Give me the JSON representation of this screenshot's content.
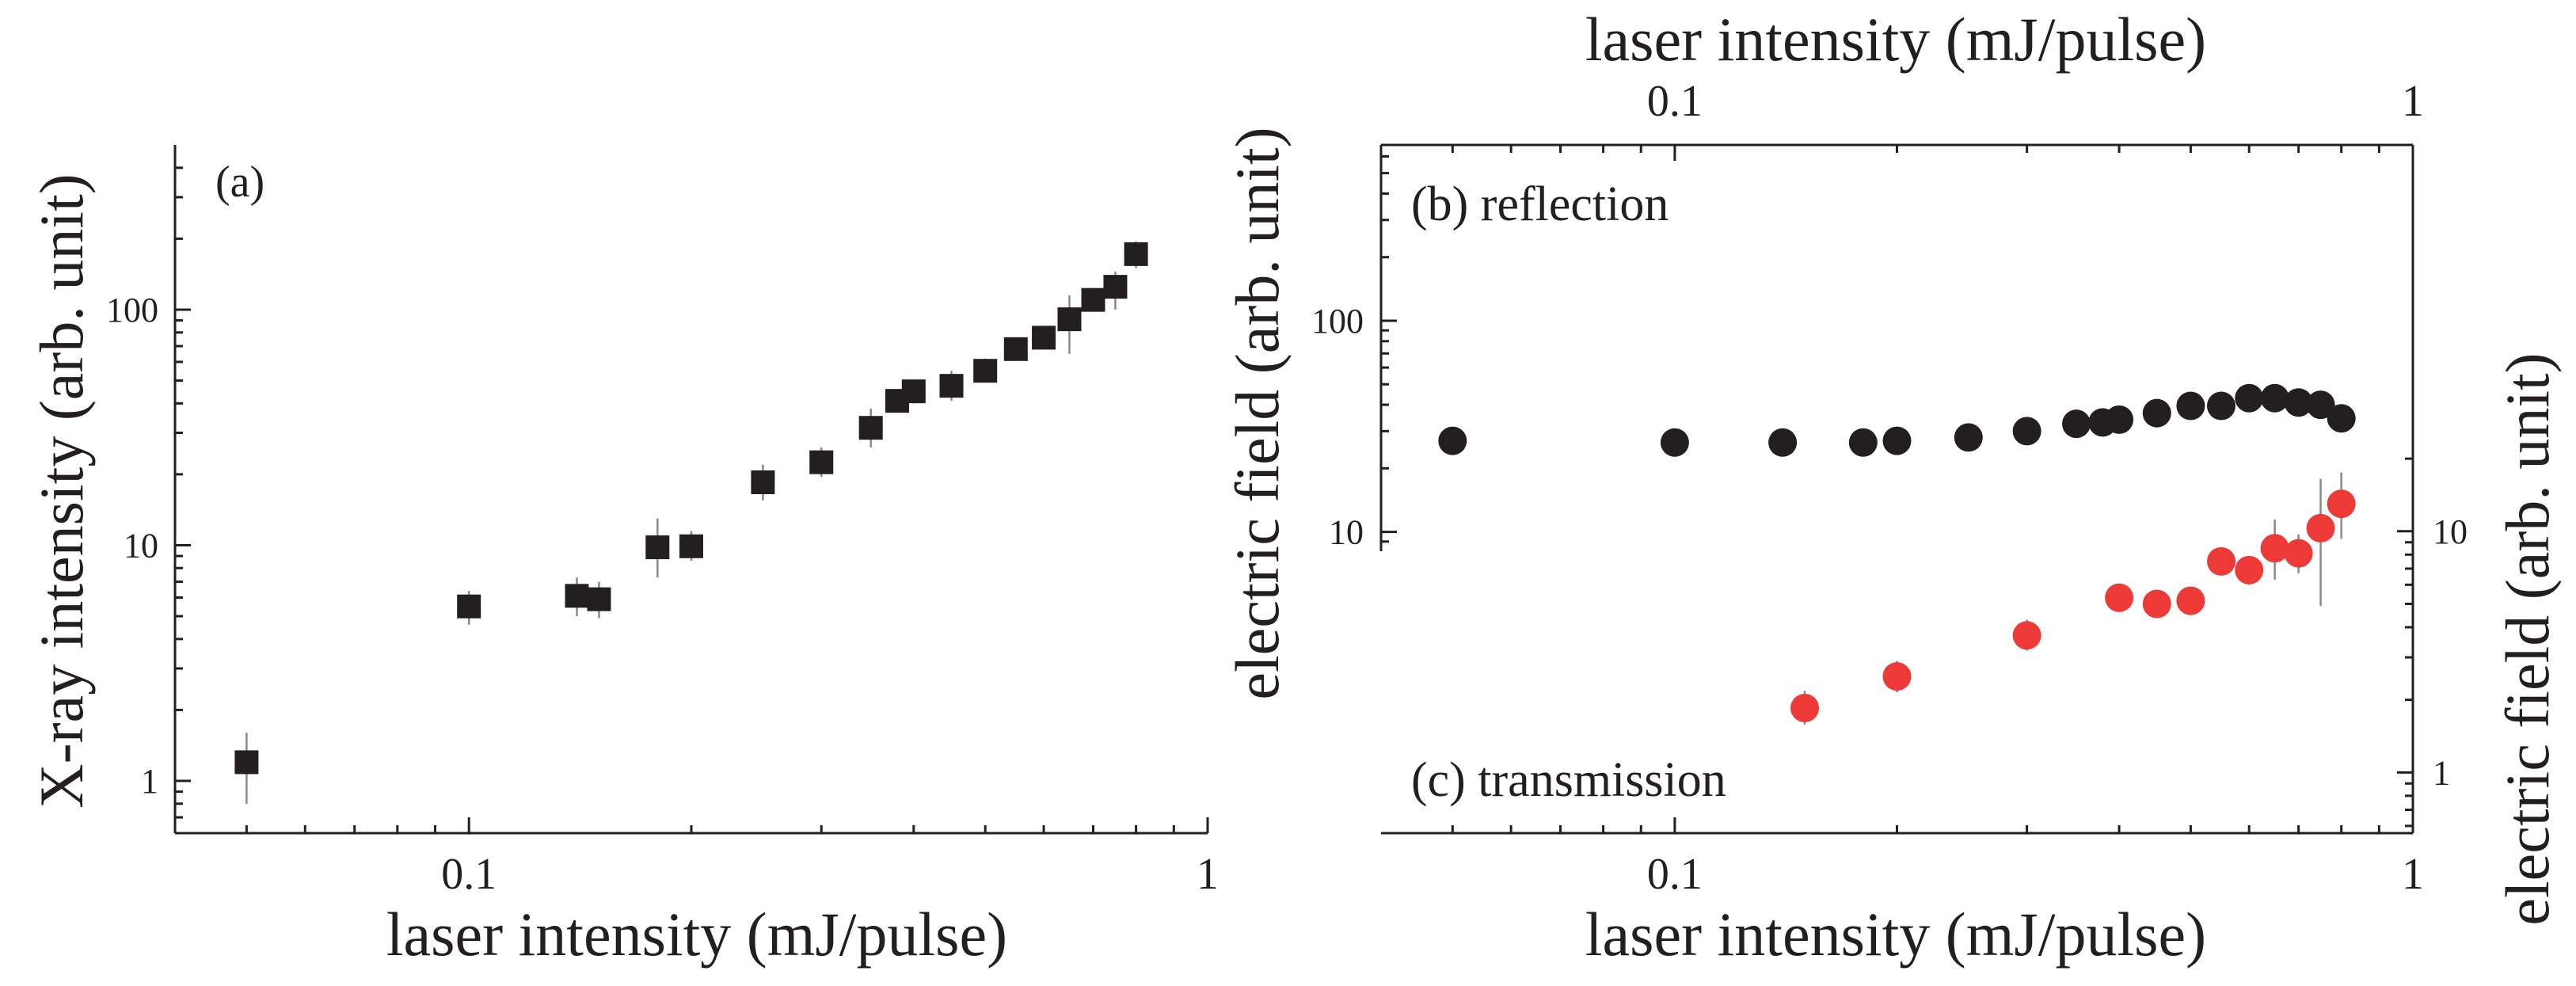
{
  "chart_data": [
    {
      "id": "a",
      "type": "scatter",
      "panel_label": "(a)",
      "xlabel": "laser intensity (mJ/pulse)",
      "ylabel": "X-ray intensity (arb. unit)",
      "xscale": "log",
      "yscale": "log",
      "xlim": [
        0.04,
        1
      ],
      "ylim": [
        0.6,
        500
      ],
      "x_ticks": [
        0.1,
        1
      ],
      "x_tick_labels": [
        "0.1",
        "1"
      ],
      "y_ticks": [
        1,
        10,
        100
      ],
      "y_tick_labels": [
        "1",
        "10",
        "100"
      ],
      "marker": "square",
      "color": "#231f20",
      "series": [
        {
          "name": "X-ray intensity",
          "points": [
            {
              "x": 0.05,
              "y": 1.2,
              "lo": 0.8,
              "hi": 1.6
            },
            {
              "x": 0.1,
              "y": 5.5,
              "lo": 4.6,
              "hi": 6.4
            },
            {
              "x": 0.14,
              "y": 6.1,
              "lo": 5.0,
              "hi": 7.3
            },
            {
              "x": 0.15,
              "y": 5.9,
              "lo": 4.9,
              "hi": 7.0
            },
            {
              "x": 0.18,
              "y": 9.8,
              "lo": 7.3,
              "hi": 13
            },
            {
              "x": 0.2,
              "y": 9.9,
              "lo": 8.6,
              "hi": 11.5
            },
            {
              "x": 0.25,
              "y": 18.5,
              "lo": 15.5,
              "hi": 22
            },
            {
              "x": 0.3,
              "y": 22.5,
              "lo": 19.5,
              "hi": 26
            },
            {
              "x": 0.35,
              "y": 31.5,
              "lo": 26,
              "hi": 38
            },
            {
              "x": 0.38,
              "y": 41,
              "lo": 37,
              "hi": 45
            },
            {
              "x": 0.4,
              "y": 45,
              "lo": 40,
              "hi": 50
            },
            {
              "x": 0.45,
              "y": 47.5,
              "lo": 41,
              "hi": 55
            },
            {
              "x": 0.5,
              "y": 55,
              "lo": 49,
              "hi": 62
            },
            {
              "x": 0.55,
              "y": 68,
              "lo": 62,
              "hi": 75
            },
            {
              "x": 0.6,
              "y": 76,
              "lo": 70,
              "hi": 83
            },
            {
              "x": 0.65,
              "y": 91,
              "lo": 65,
              "hi": 115
            },
            {
              "x": 0.7,
              "y": 110,
              "lo": 100,
              "hi": 121
            },
            {
              "x": 0.75,
              "y": 125,
              "lo": 100,
              "hi": 145
            },
            {
              "x": 0.8,
              "y": 172,
              "lo": 150,
              "hi": 195
            }
          ]
        }
      ]
    },
    {
      "id": "b",
      "type": "scatter",
      "panel_label": "(b) reflection",
      "xlabel": "laser intensity (mJ/pulse)",
      "ylabel": "electric field (arb. unit)",
      "x_axis_position": "top",
      "xscale": "log",
      "yscale": "log",
      "xlim": [
        0.04,
        1
      ],
      "ylim": [
        8.1,
        680
      ],
      "x_ticks": [
        0.1,
        1
      ],
      "x_tick_labels": [
        "0.1",
        "1"
      ],
      "y_ticks": [
        10,
        100
      ],
      "y_tick_labels": [
        "10",
        "100"
      ],
      "marker": "circle",
      "color": "#231f20",
      "series": [
        {
          "name": "reflection",
          "points": [
            {
              "x": 0.05,
              "y": 27
            },
            {
              "x": 0.1,
              "y": 26.5
            },
            {
              "x": 0.14,
              "y": 26.5
            },
            {
              "x": 0.18,
              "y": 26.5
            },
            {
              "x": 0.2,
              "y": 27
            },
            {
              "x": 0.25,
              "y": 28
            },
            {
              "x": 0.3,
              "y": 30
            },
            {
              "x": 0.35,
              "y": 32.5
            },
            {
              "x": 0.38,
              "y": 33
            },
            {
              "x": 0.4,
              "y": 34
            },
            {
              "x": 0.45,
              "y": 36.5
            },
            {
              "x": 0.5,
              "y": 39.5
            },
            {
              "x": 0.55,
              "y": 39.5
            },
            {
              "x": 0.6,
              "y": 43
            },
            {
              "x": 0.65,
              "y": 43
            },
            {
              "x": 0.7,
              "y": 41
            },
            {
              "x": 0.75,
              "y": 40
            },
            {
              "x": 0.8,
              "y": 34.5
            }
          ]
        }
      ]
    },
    {
      "id": "c",
      "type": "scatter",
      "panel_label": "(c) transmission",
      "xlabel": "laser intensity (mJ/pulse)",
      "ylabel": "electric field (arb. unit)",
      "y_axis_position": "right",
      "xscale": "log",
      "yscale": "log",
      "xlim": [
        0.04,
        1
      ],
      "ylim": [
        0.56,
        29
      ],
      "x_ticks": [
        0.1,
        1
      ],
      "x_tick_labels": [
        "0.1",
        "1"
      ],
      "y_ticks": [
        1,
        10
      ],
      "y_tick_labels": [
        "1",
        "10"
      ],
      "marker": "circle",
      "color": "#ee3a36",
      "series": [
        {
          "name": "transmission",
          "points": [
            {
              "x": 0.15,
              "y": 1.85,
              "lo": 1.58,
              "hi": 2.18
            },
            {
              "x": 0.2,
              "y": 2.5,
              "lo": 2.15,
              "hi": 2.9
            },
            {
              "x": 0.3,
              "y": 3.7,
              "lo": 3.2,
              "hi": 4.3
            },
            {
              "x": 0.4,
              "y": 5.3,
              "lo": 4.7,
              "hi": 5.9
            },
            {
              "x": 0.45,
              "y": 5.0,
              "lo": 4.4,
              "hi": 5.6
            },
            {
              "x": 0.5,
              "y": 5.15,
              "lo": 4.5,
              "hi": 5.8
            },
            {
              "x": 0.55,
              "y": 7.5,
              "lo": 6.6,
              "hi": 8.5
            },
            {
              "x": 0.6,
              "y": 6.9,
              "lo": 6.0,
              "hi": 7.9
            },
            {
              "x": 0.65,
              "y": 8.5,
              "lo": 6.3,
              "hi": 11.2
            },
            {
              "x": 0.7,
              "y": 8.1,
              "lo": 6.7,
              "hi": 9.7
            },
            {
              "x": 0.75,
              "y": 10.3,
              "lo": 4.9,
              "hi": 16.5
            },
            {
              "x": 0.8,
              "y": 13.0,
              "lo": 9.3,
              "hi": 17.5
            }
          ]
        }
      ]
    }
  ]
}
